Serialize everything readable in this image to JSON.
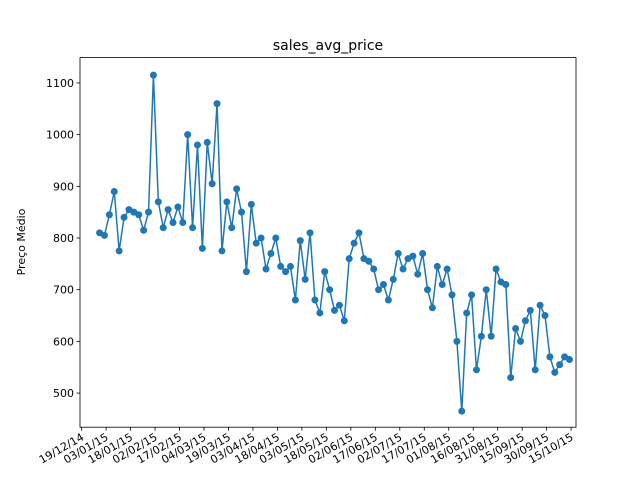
{
  "chart_data": {
    "type": "line",
    "title": "sales_avg_price",
    "ylabel": "Preço Médio",
    "x": [
      "2014-12-30",
      "2015-01-02",
      "2015-01-05",
      "2015-01-08",
      "2015-01-11",
      "2015-01-14",
      "2015-01-17",
      "2015-01-20",
      "2015-01-23",
      "2015-01-26",
      "2015-01-29",
      "2015-02-01",
      "2015-02-04",
      "2015-02-07",
      "2015-02-10",
      "2015-02-13",
      "2015-02-16",
      "2015-02-19",
      "2015-02-22",
      "2015-02-25",
      "2015-02-28",
      "2015-03-03",
      "2015-03-06",
      "2015-03-09",
      "2015-03-12",
      "2015-03-15",
      "2015-03-18",
      "2015-03-21",
      "2015-03-24",
      "2015-03-27",
      "2015-03-30",
      "2015-04-02",
      "2015-04-05",
      "2015-04-08",
      "2015-04-11",
      "2015-04-14",
      "2015-04-17",
      "2015-04-20",
      "2015-04-23",
      "2015-04-26",
      "2015-04-29",
      "2015-05-02",
      "2015-05-05",
      "2015-05-08",
      "2015-05-11",
      "2015-05-14",
      "2015-05-17",
      "2015-05-20",
      "2015-05-23",
      "2015-05-26",
      "2015-05-29",
      "2015-06-01",
      "2015-06-04",
      "2015-06-07",
      "2015-06-10",
      "2015-06-13",
      "2015-06-16",
      "2015-06-19",
      "2015-06-22",
      "2015-06-25",
      "2015-06-28",
      "2015-07-01",
      "2015-07-04",
      "2015-07-07",
      "2015-07-10",
      "2015-07-13",
      "2015-07-16",
      "2015-07-19",
      "2015-07-22",
      "2015-07-25",
      "2015-07-28",
      "2015-07-31",
      "2015-08-03",
      "2015-08-06",
      "2015-08-09",
      "2015-08-12",
      "2015-08-15",
      "2015-08-18",
      "2015-08-21",
      "2015-08-24",
      "2015-08-27",
      "2015-08-30",
      "2015-09-02",
      "2015-09-05",
      "2015-09-08",
      "2015-09-11",
      "2015-09-14",
      "2015-09-17",
      "2015-09-20",
      "2015-09-23",
      "2015-09-26",
      "2015-09-29",
      "2015-10-02",
      "2015-10-05",
      "2015-10-08",
      "2015-10-11",
      "2015-10-14"
    ],
    "series": [
      {
        "name": "sales_avg_price",
        "color": "#1f77b4",
        "values": [
          810,
          805,
          845,
          890,
          775,
          840,
          855,
          850,
          845,
          815,
          850,
          1115,
          870,
          820,
          855,
          830,
          860,
          830,
          1000,
          820,
          980,
          780,
          985,
          905,
          1060,
          775,
          870,
          820,
          895,
          850,
          735,
          865,
          790,
          800,
          740,
          770,
          800,
          745,
          735,
          745,
          680,
          795,
          720,
          810,
          680,
          655,
          735,
          700,
          660,
          670,
          640,
          760,
          790,
          810,
          760,
          755,
          740,
          700,
          710,
          680,
          720,
          770,
          740,
          760,
          765,
          730,
          770,
          700,
          665,
          745,
          710,
          740,
          690,
          600,
          465,
          655,
          690,
          545,
          610,
          700,
          610,
          740,
          715,
          710,
          530,
          625,
          600,
          640,
          660,
          545,
          670,
          650,
          570,
          540,
          555,
          570,
          565
        ]
      }
    ],
    "xlim": [
      "2014-12-18",
      "2015-10-18"
    ],
    "xticks": [
      {
        "value": "2014-12-19",
        "label": "19/12/14"
      },
      {
        "value": "2015-01-03",
        "label": "03/01/15"
      },
      {
        "value": "2015-01-18",
        "label": "18/01/15"
      },
      {
        "value": "2015-02-02",
        "label": "02/02/15"
      },
      {
        "value": "2015-02-17",
        "label": "17/02/15"
      },
      {
        "value": "2015-03-04",
        "label": "04/03/15"
      },
      {
        "value": "2015-03-19",
        "label": "19/03/15"
      },
      {
        "value": "2015-04-03",
        "label": "03/04/15"
      },
      {
        "value": "2015-04-18",
        "label": "18/04/15"
      },
      {
        "value": "2015-05-03",
        "label": "03/05/15"
      },
      {
        "value": "2015-05-18",
        "label": "18/05/15"
      },
      {
        "value": "2015-06-02",
        "label": "02/06/15"
      },
      {
        "value": "2015-06-17",
        "label": "17/06/15"
      },
      {
        "value": "2015-07-02",
        "label": "02/07/15"
      },
      {
        "value": "2015-07-17",
        "label": "17/07/15"
      },
      {
        "value": "2015-08-01",
        "label": "01/08/15"
      },
      {
        "value": "2015-08-16",
        "label": "16/08/15"
      },
      {
        "value": "2015-08-31",
        "label": "31/08/15"
      },
      {
        "value": "2015-09-15",
        "label": "15/09/15"
      },
      {
        "value": "2015-09-30",
        "label": "30/09/15"
      },
      {
        "value": "2015-10-15",
        "label": "15/10/15"
      }
    ],
    "ylim": [
      434,
      1149
    ],
    "yticks": [
      500,
      600,
      700,
      800,
      900,
      1000,
      1100
    ]
  }
}
